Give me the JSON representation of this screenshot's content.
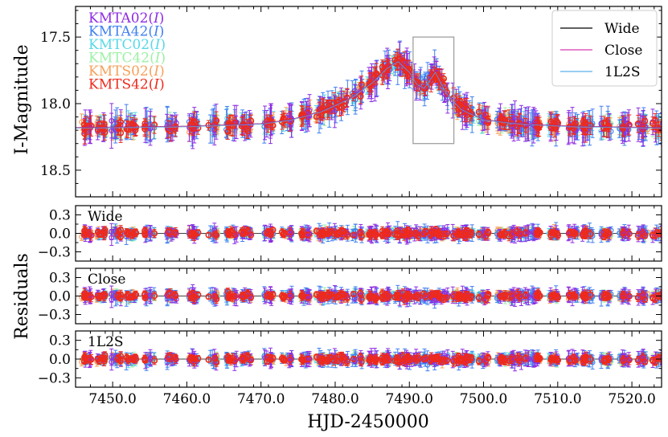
{
  "chart_data": [
    {
      "type": "scatter",
      "panel": "main",
      "title": "",
      "xlabel": "HJD-2450000",
      "ylabel": "I-Magnitude",
      "xlim": [
        7445.0,
        7524.0
      ],
      "ylim": [
        18.7,
        17.27
      ],
      "y_inverted": true,
      "x_ticks": [
        7450.0,
        7460.0,
        7470.0,
        7480.0,
        7490.0,
        7500.0,
        7510.0,
        7520.0
      ],
      "x_tick_labels": [
        "7450.0",
        "7460.0",
        "7470.0",
        "7480.0",
        "7490.0",
        "7500.0",
        "7510.0",
        "7520.0"
      ],
      "y_ticks": [
        17.5,
        18.0,
        18.5
      ],
      "y_tick_labels": [
        "17.5",
        "18.0",
        "18.5"
      ],
      "grid": false,
      "highlight_box": {
        "x": [
          7490.5,
          7496.0
        ],
        "y": [
          17.5,
          18.3
        ]
      },
      "data_legend": [
        {
          "name": "KMTA02(I)",
          "label": "KMTA02(",
          "italic": "I",
          "close": ")",
          "color": "#8e2be2"
        },
        {
          "name": "KMTA42(I)",
          "label": "KMTA42(",
          "italic": "I",
          "close": ")",
          "color": "#3f7ff0"
        },
        {
          "name": "KMTC02(I)",
          "label": "KMTC02(",
          "italic": "I",
          "close": ")",
          "color": "#58d8e8"
        },
        {
          "name": "KMTC42(I)",
          "label": "KMTC42(",
          "italic": "I",
          "close": ")",
          "color": "#9ef0a6"
        },
        {
          "name": "KMTS02(I)",
          "label": "KMTS02(",
          "italic": "I",
          "close": ")",
          "color": "#f7a05a"
        },
        {
          "name": "KMTS42(I)",
          "label": "KMTS42(",
          "italic": "I",
          "close": ")",
          "color": "#ee2a1c"
        }
      ],
      "model_legend": [
        {
          "name": "Wide",
          "color": "#000000"
        },
        {
          "name": "Close",
          "color": "#d63ab0"
        },
        {
          "name": "1L2S",
          "color": "#5ab0ee"
        }
      ],
      "light_curve_trend": [
        {
          "x": 7445,
          "y": 18.18
        },
        {
          "x": 7460,
          "y": 18.17
        },
        {
          "x": 7470,
          "y": 18.15
        },
        {
          "x": 7474,
          "y": 18.12
        },
        {
          "x": 7478,
          "y": 18.06
        },
        {
          "x": 7482,
          "y": 17.96
        },
        {
          "x": 7485,
          "y": 17.84
        },
        {
          "x": 7487,
          "y": 17.73
        },
        {
          "x": 7488.5,
          "y": 17.68
        },
        {
          "x": 7490,
          "y": 17.76
        },
        {
          "x": 7491,
          "y": 17.85
        },
        {
          "x": 7492,
          "y": 17.88
        },
        {
          "x": 7493.5,
          "y": 17.76
        },
        {
          "x": 7495,
          "y": 17.92
        },
        {
          "x": 7497,
          "y": 18.04
        },
        {
          "x": 7500,
          "y": 18.12
        },
        {
          "x": 7505,
          "y": 18.15
        },
        {
          "x": 7512,
          "y": 18.17
        },
        {
          "x": 7524,
          "y": 18.18
        }
      ],
      "observing_nights": [
        7446.5,
        7448.5,
        7450.5,
        7452.5,
        7455,
        7458,
        7461,
        7463.5,
        7466,
        7468,
        7471,
        7473.5,
        7476,
        7478,
        7479.5,
        7481,
        7483,
        7485,
        7487,
        7488.5,
        7490,
        7491.5,
        7493,
        7494.5,
        7496.5,
        7498,
        7500,
        7502.5,
        7504,
        7505.5,
        7507,
        7509.5,
        7512,
        7514,
        7516.5,
        7519,
        7521.5,
        7523.5
      ]
    },
    {
      "type": "scatter",
      "panel": "residuals-wide",
      "label": "Wide",
      "ylabel": "Residuals",
      "ylim": [
        -0.45,
        0.45
      ],
      "y_ticks": [
        0.3,
        0.0,
        -0.3
      ],
      "y_tick_labels": [
        "0.3",
        "0.0",
        "−0.3"
      ],
      "model_line": 0.0
    },
    {
      "type": "scatter",
      "panel": "residuals-close",
      "label": "Close",
      "ylim": [
        -0.45,
        0.45
      ],
      "y_ticks": [
        0.3,
        0.0,
        -0.3
      ],
      "y_tick_labels": [
        "0.3",
        "0.0",
        "−0.3"
      ],
      "model_line": 0.0
    },
    {
      "type": "scatter",
      "panel": "residuals-1l2s",
      "label": "1L2S",
      "ylim": [
        -0.45,
        0.45
      ],
      "y_ticks": [
        0.3,
        0.0,
        -0.3
      ],
      "y_tick_labels": [
        "0.3",
        "0.0",
        "−0.3"
      ],
      "model_line": 0.0
    }
  ]
}
